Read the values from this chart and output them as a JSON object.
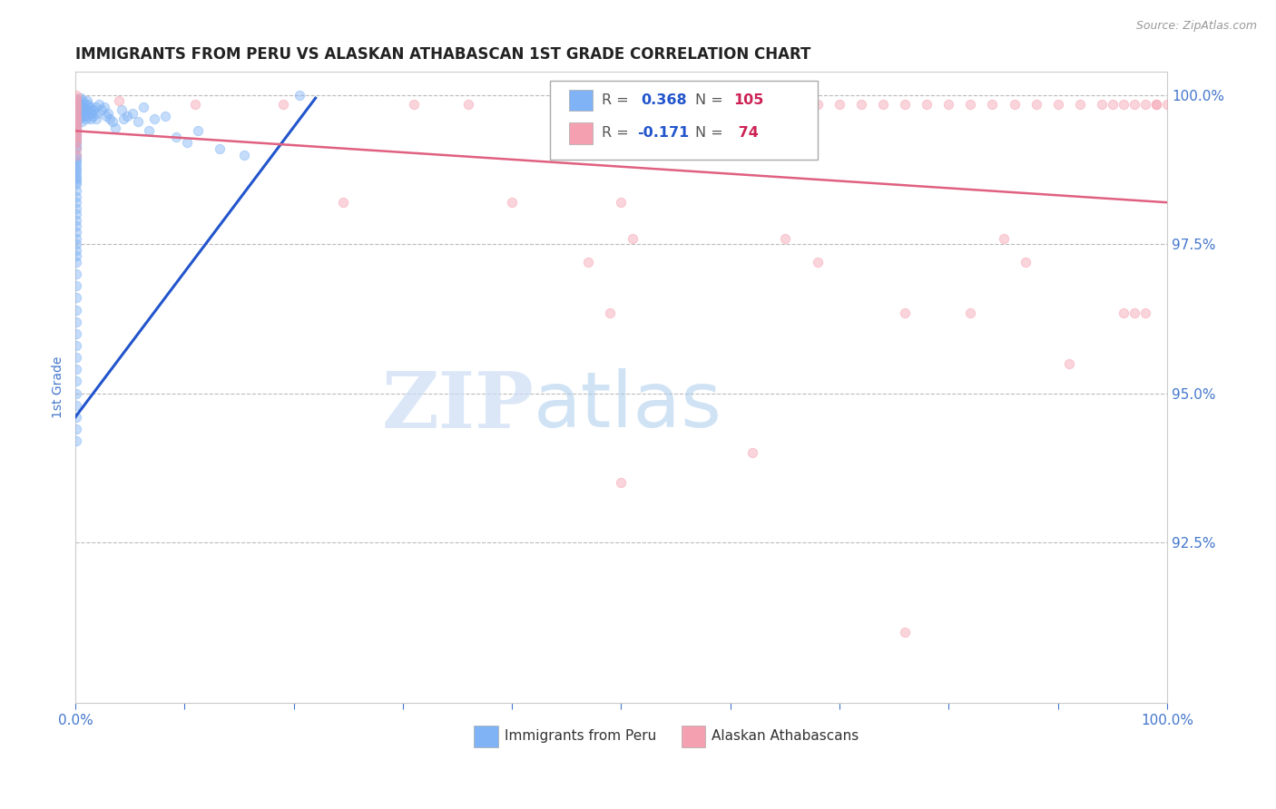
{
  "title": "IMMIGRANTS FROM PERU VS ALASKAN ATHABASCAN 1ST GRADE CORRELATION CHART",
  "source": "Source: ZipAtlas.com",
  "ylabel": "1st Grade",
  "xlim": [
    0.0,
    1.0
  ],
  "ylim": [
    0.898,
    1.004
  ],
  "yticks": [
    0.925,
    0.95,
    0.975,
    1.0
  ],
  "ytick_labels": [
    "92.5%",
    "95.0%",
    "97.5%",
    "100.0%"
  ],
  "xticks": [
    0.0,
    0.1,
    0.2,
    0.3,
    0.4,
    0.5,
    0.6,
    0.7,
    0.8,
    0.9,
    1.0
  ],
  "xtick_labels": [
    "0.0%",
    "",
    "",
    "",
    "",
    "",
    "",
    "",
    "",
    "",
    "100.0%"
  ],
  "color_blue": "#7fb3f5",
  "color_pink": "#f5a0b0",
  "color_trend_blue": "#2255cc",
  "color_trend_pink": "#e06080",
  "color_axis_label": "#4477cc",
  "color_grid": "#bbbbbb",
  "color_title": "#222222",
  "watermark_zip": "ZIP",
  "watermark_atlas": "atlas",
  "blue_points": [
    [
      0.001,
      0.999
    ],
    [
      0.001,
      0.9985
    ],
    [
      0.001,
      0.998
    ],
    [
      0.001,
      0.997
    ],
    [
      0.001,
      0.9975
    ],
    [
      0.001,
      0.9965
    ],
    [
      0.001,
      0.996
    ],
    [
      0.001,
      0.9955
    ],
    [
      0.001,
      0.995
    ],
    [
      0.001,
      0.9945
    ],
    [
      0.001,
      0.994
    ],
    [
      0.001,
      0.9935
    ],
    [
      0.001,
      0.993
    ],
    [
      0.001,
      0.9925
    ],
    [
      0.001,
      0.992
    ],
    [
      0.001,
      0.9915
    ],
    [
      0.001,
      0.991
    ],
    [
      0.001,
      0.99
    ],
    [
      0.001,
      0.9895
    ],
    [
      0.001,
      0.989
    ],
    [
      0.001,
      0.9885
    ],
    [
      0.001,
      0.988
    ],
    [
      0.001,
      0.9875
    ],
    [
      0.001,
      0.987
    ],
    [
      0.001,
      0.9865
    ],
    [
      0.001,
      0.986
    ],
    [
      0.001,
      0.9855
    ],
    [
      0.001,
      0.985
    ],
    [
      0.001,
      0.984
    ],
    [
      0.001,
      0.983
    ],
    [
      0.001,
      0.982
    ],
    [
      0.001,
      0.981
    ],
    [
      0.001,
      0.98
    ],
    [
      0.001,
      0.979
    ],
    [
      0.001,
      0.978
    ],
    [
      0.001,
      0.977
    ],
    [
      0.001,
      0.976
    ],
    [
      0.001,
      0.975
    ],
    [
      0.001,
      0.974
    ],
    [
      0.001,
      0.973
    ],
    [
      0.001,
      0.972
    ],
    [
      0.001,
      0.97
    ],
    [
      0.001,
      0.968
    ],
    [
      0.001,
      0.966
    ],
    [
      0.001,
      0.964
    ],
    [
      0.001,
      0.962
    ],
    [
      0.001,
      0.96
    ],
    [
      0.001,
      0.958
    ],
    [
      0.001,
      0.956
    ],
    [
      0.001,
      0.954
    ],
    [
      0.001,
      0.952
    ],
    [
      0.001,
      0.95
    ],
    [
      0.001,
      0.948
    ],
    [
      0.001,
      0.946
    ],
    [
      0.001,
      0.944
    ],
    [
      0.001,
      0.942
    ],
    [
      0.003,
      0.999
    ],
    [
      0.004,
      0.9985
    ],
    [
      0.004,
      0.9975
    ],
    [
      0.004,
      0.996
    ],
    [
      0.005,
      0.9995
    ],
    [
      0.005,
      0.998
    ],
    [
      0.005,
      0.9965
    ],
    [
      0.006,
      0.9985
    ],
    [
      0.006,
      0.997
    ],
    [
      0.006,
      0.9955
    ],
    [
      0.007,
      0.999
    ],
    [
      0.007,
      0.9975
    ],
    [
      0.008,
      0.998
    ],
    [
      0.008,
      0.9965
    ],
    [
      0.009,
      0.9985
    ],
    [
      0.009,
      0.997
    ],
    [
      0.01,
      0.9975
    ],
    [
      0.01,
      0.996
    ],
    [
      0.011,
      0.999
    ],
    [
      0.011,
      0.9965
    ],
    [
      0.012,
      0.9985
    ],
    [
      0.013,
      0.998
    ],
    [
      0.014,
      0.9975
    ],
    [
      0.014,
      0.996
    ],
    [
      0.015,
      0.997
    ],
    [
      0.016,
      0.9965
    ],
    [
      0.017,
      0.9975
    ],
    [
      0.018,
      0.998
    ],
    [
      0.019,
      0.996
    ],
    [
      0.02,
      0.997
    ],
    [
      0.022,
      0.9985
    ],
    [
      0.024,
      0.9975
    ],
    [
      0.027,
      0.998
    ],
    [
      0.028,
      0.9965
    ],
    [
      0.03,
      0.997
    ],
    [
      0.032,
      0.996
    ],
    [
      0.034,
      0.9955
    ],
    [
      0.037,
      0.9945
    ],
    [
      0.042,
      0.9975
    ],
    [
      0.044,
      0.996
    ],
    [
      0.047,
      0.9965
    ],
    [
      0.052,
      0.997
    ],
    [
      0.057,
      0.9955
    ],
    [
      0.062,
      0.998
    ],
    [
      0.067,
      0.994
    ],
    [
      0.072,
      0.996
    ],
    [
      0.082,
      0.9965
    ],
    [
      0.092,
      0.993
    ],
    [
      0.102,
      0.992
    ],
    [
      0.112,
      0.994
    ],
    [
      0.132,
      0.991
    ],
    [
      0.155,
      0.99
    ],
    [
      0.205,
      1.0
    ]
  ],
  "pink_points": [
    [
      0.001,
      1.0
    ],
    [
      0.001,
      0.9995
    ],
    [
      0.001,
      0.999
    ],
    [
      0.001,
      0.9985
    ],
    [
      0.001,
      0.998
    ],
    [
      0.001,
      0.9975
    ],
    [
      0.001,
      0.997
    ],
    [
      0.001,
      0.9965
    ],
    [
      0.001,
      0.996
    ],
    [
      0.001,
      0.9955
    ],
    [
      0.001,
      0.995
    ],
    [
      0.001,
      0.9945
    ],
    [
      0.001,
      0.994
    ],
    [
      0.001,
      0.9935
    ],
    [
      0.001,
      0.993
    ],
    [
      0.001,
      0.9925
    ],
    [
      0.001,
      0.992
    ],
    [
      0.001,
      0.991
    ],
    [
      0.001,
      0.99
    ],
    [
      0.04,
      0.999
    ],
    [
      0.11,
      0.9985
    ],
    [
      0.19,
      0.9985
    ],
    [
      0.245,
      0.982
    ],
    [
      0.31,
      0.9985
    ],
    [
      0.36,
      0.9985
    ],
    [
      0.4,
      0.982
    ],
    [
      0.44,
      0.9985
    ],
    [
      0.5,
      0.982
    ],
    [
      0.51,
      0.976
    ],
    [
      0.53,
      0.9985
    ],
    [
      0.57,
      0.9985
    ],
    [
      0.62,
      0.9985
    ],
    [
      0.64,
      0.998
    ],
    [
      0.66,
      0.9985
    ],
    [
      0.68,
      0.9985
    ],
    [
      0.7,
      0.9985
    ],
    [
      0.72,
      0.9985
    ],
    [
      0.74,
      0.9985
    ],
    [
      0.76,
      0.9985
    ],
    [
      0.78,
      0.9985
    ],
    [
      0.8,
      0.9985
    ],
    [
      0.82,
      0.9985
    ],
    [
      0.84,
      0.9985
    ],
    [
      0.86,
      0.9985
    ],
    [
      0.88,
      0.9985
    ],
    [
      0.9,
      0.9985
    ],
    [
      0.92,
      0.9985
    ],
    [
      0.94,
      0.9985
    ],
    [
      0.95,
      0.9985
    ],
    [
      0.96,
      0.9985
    ],
    [
      0.97,
      0.9985
    ],
    [
      0.98,
      0.9985
    ],
    [
      0.99,
      0.9985
    ],
    [
      1.0,
      0.9985
    ],
    [
      0.47,
      0.972
    ],
    [
      0.49,
      0.9635
    ],
    [
      0.65,
      0.976
    ],
    [
      0.68,
      0.972
    ],
    [
      0.76,
      0.9635
    ],
    [
      0.82,
      0.9635
    ],
    [
      0.85,
      0.976
    ],
    [
      0.87,
      0.972
    ],
    [
      0.91,
      0.955
    ],
    [
      0.96,
      0.9635
    ],
    [
      0.97,
      0.9635
    ],
    [
      0.98,
      0.9635
    ],
    [
      0.99,
      0.9985
    ],
    [
      0.6,
      0.9985
    ],
    [
      0.76,
      0.91
    ],
    [
      0.62,
      0.94
    ],
    [
      0.5,
      0.935
    ]
  ],
  "blue_trend_x": [
    0.0,
    0.22
  ],
  "blue_trend_y_start": 0.946,
  "blue_trend_y_end": 0.9995,
  "pink_trend_x": [
    0.0,
    1.0
  ],
  "pink_trend_y_start": 0.994,
  "pink_trend_y_end": 0.982
}
